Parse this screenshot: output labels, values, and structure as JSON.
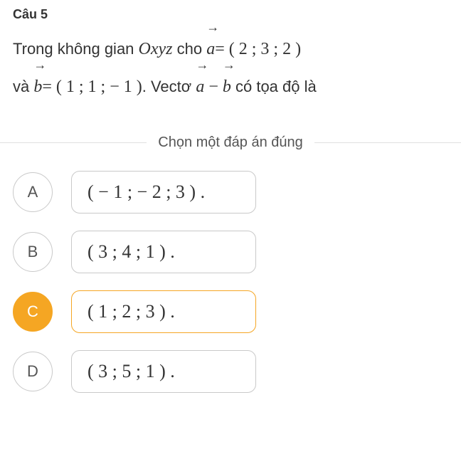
{
  "question": {
    "number": "Câu 5",
    "line1_prefix": "Trong không gian ",
    "line1_space": "Oxyz",
    "line1_cho": " cho ",
    "vec_a": "a",
    "vec_b": "b",
    "a_eq": "= ( 2 ; 3 ; 2 )",
    "line2_va": "và ",
    "b_eq": "= ( 1 ; 1 ; − 1 )",
    "line2_vecto": ". Vectơ ",
    "minus": " − ",
    "line2_end": " có tọa độ là"
  },
  "instruction": "Chọn một đáp án đúng",
  "options": [
    {
      "letter": "A",
      "text": "( − 1 ; − 2 ; 3 ) .",
      "selected": false
    },
    {
      "letter": "B",
      "text": "( 3 ; 4 ; 1 ) .",
      "selected": false
    },
    {
      "letter": "C",
      "text": "( 1 ; 2 ; 3 ) .",
      "selected": true
    },
    {
      "letter": "D",
      "text": "( 3 ; 5 ; 1 ) .",
      "selected": false
    }
  ],
  "colors": {
    "selected_bg": "#f5a623",
    "border": "#c9c9c9",
    "hr": "#e0e0e0",
    "text": "#333333"
  }
}
